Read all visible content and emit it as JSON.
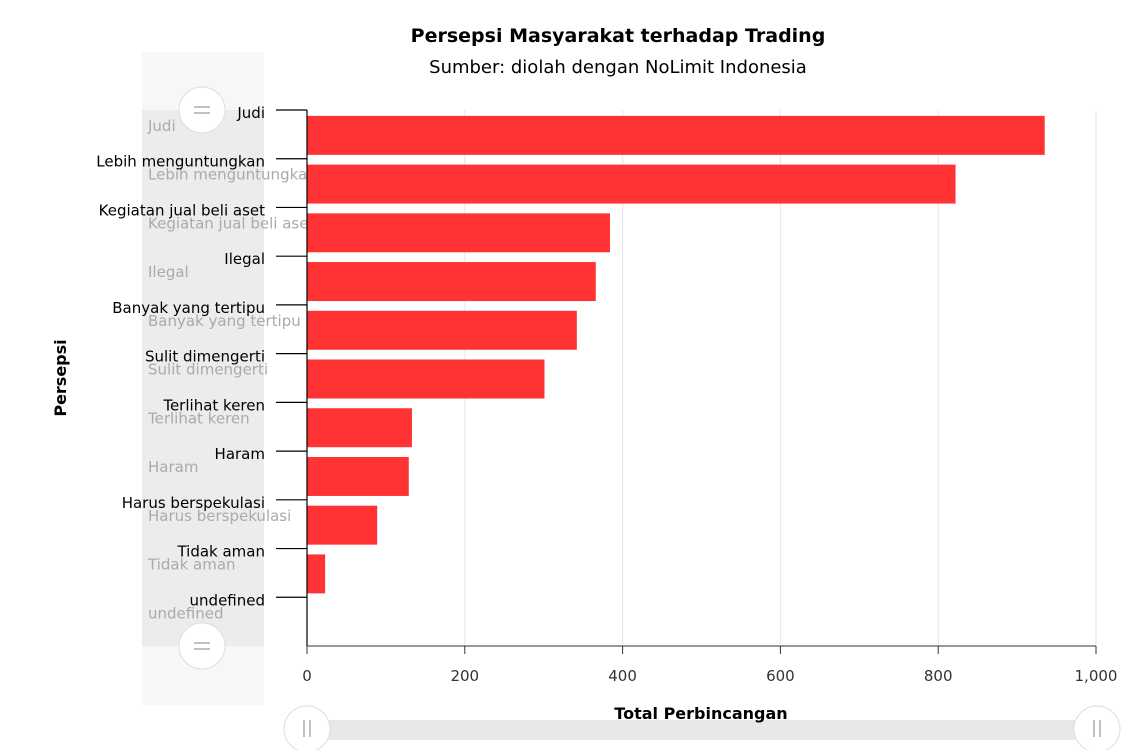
{
  "chart_data": {
    "type": "bar",
    "orientation": "horizontal",
    "title": "Persepsi Masyarakat terhadap Trading",
    "subtitle": "Sumber: diolah dengan NoLimit Indonesia",
    "xlabel": "Total Perbincangan",
    "ylabel": "Persepsi",
    "categories": [
      "Judi",
      "Lebih menguntungkan",
      "Kegiatan jual beli aset",
      "Ilegal",
      "Banyak yang tertipu",
      "Sulit dimengerti",
      "Terlihat keren",
      "Haram",
      "Harus berspekulasi",
      "Tidak aman",
      "undefined"
    ],
    "values": [
      935,
      822,
      384,
      366,
      342,
      301,
      133,
      129,
      89,
      23,
      0
    ],
    "xlim": [
      0,
      1000
    ],
    "xticks": [
      "0",
      "200",
      "400",
      "600",
      "800",
      "1,000"
    ],
    "bar_color": "#ff3333",
    "grid": true
  },
  "scrollbars": {
    "vertical": {
      "handle_top": "≡",
      "handle_bottom": "≡"
    },
    "horizontal": {
      "handle_left": "||",
      "handle_right": "||"
    }
  }
}
